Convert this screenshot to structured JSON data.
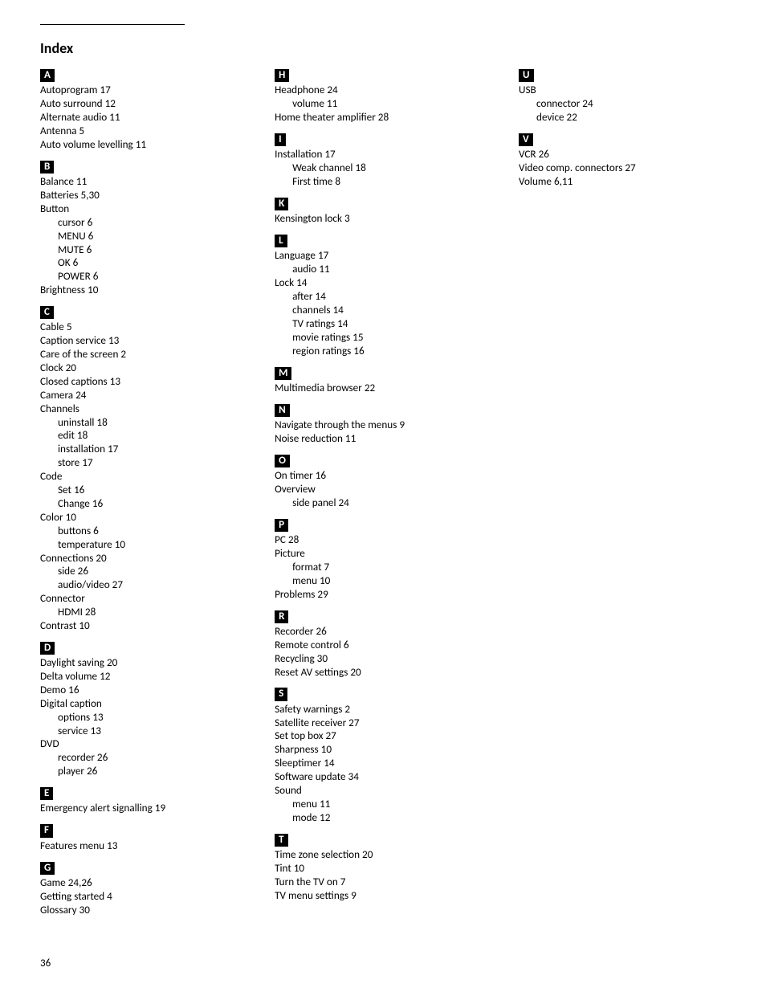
{
  "page": {
    "title": "Index",
    "page_number": "36"
  },
  "columns": [
    {
      "sections": [
        {
          "letter": "A",
          "entries": [
            {
              "t": "Autoprogram  17"
            },
            {
              "t": "Auto surround  12"
            },
            {
              "t": "Alternate audio  11"
            },
            {
              "t": "Antenna  5"
            },
            {
              "t": "Auto volume levelling  11"
            }
          ]
        },
        {
          "letter": "B",
          "entries": [
            {
              "t": "Balance  11"
            },
            {
              "t": "Batteries  5,30"
            },
            {
              "t": "Button"
            },
            {
              "t": "cursor  6",
              "sub": true
            },
            {
              "t": "MENU  6",
              "sub": true
            },
            {
              "t": "MUTE  6",
              "sub": true
            },
            {
              "t": "OK  6",
              "sub": true
            },
            {
              "t": "POWER  6",
              "sub": true
            },
            {
              "t": "Brightness  10"
            }
          ]
        },
        {
          "letter": "C",
          "entries": [
            {
              "t": "Cable  5"
            },
            {
              "t": "Caption service  13"
            },
            {
              "t": "Care of the screen  2"
            },
            {
              "t": "Clock  20"
            },
            {
              "t": "Closed captions  13"
            },
            {
              "t": "Camera  24"
            },
            {
              "t": "Channels"
            },
            {
              "t": "uninstall  18",
              "sub": true
            },
            {
              "t": "edit  18",
              "sub": true
            },
            {
              "t": "installation  17",
              "sub": true
            },
            {
              "t": "store  17",
              "sub": true
            },
            {
              "t": "Code"
            },
            {
              "t": "Set  16",
              "sub": true
            },
            {
              "t": "Change 16",
              "sub": true
            },
            {
              "t": "Color  10"
            },
            {
              "t": "buttons  6",
              "sub": true
            },
            {
              "t": "temperature  10",
              "sub": true
            },
            {
              "t": "Connections  20"
            },
            {
              "t": "side  26",
              "sub": true
            },
            {
              "t": "audio/video  27",
              "sub": true
            },
            {
              "t": "Connector"
            },
            {
              "t": "HDMI  28",
              "sub": true
            },
            {
              "t": "Contrast  10"
            }
          ]
        },
        {
          "letter": "D",
          "entries": [
            {
              "t": "Daylight saving  20"
            },
            {
              "t": "Delta volume  12"
            },
            {
              "t": "Demo  16"
            },
            {
              "t": "Digital caption"
            },
            {
              "t": "options  13",
              "sub": true
            },
            {
              "t": "service  13",
              "sub": true
            },
            {
              "t": "DVD"
            },
            {
              "t": "recorder  26",
              "sub": true
            },
            {
              "t": "player  26",
              "sub": true
            }
          ]
        },
        {
          "letter": "E",
          "entries": [
            {
              "t": "Emergency alert signalling  19"
            }
          ]
        },
        {
          "letter": "F",
          "entries": [
            {
              "t": "Features menu 13"
            }
          ]
        },
        {
          "letter": "G",
          "entries": [
            {
              "t": "Game  24,26"
            },
            {
              "t": "Getting started  4"
            },
            {
              "t": "Glossary  30"
            }
          ]
        }
      ]
    },
    {
      "sections": [
        {
          "letter": "H",
          "entries": [
            {
              "t": "Headphone  24"
            },
            {
              "t": "volume  11",
              "sub": true
            },
            {
              "t": "Home theater amplifier  28"
            }
          ]
        },
        {
          "letter": "I",
          "entries": [
            {
              "t": "Installation  17"
            },
            {
              "t": "Weak channel 18",
              "sub": true
            },
            {
              "t": "First time  8",
              "sub": true
            }
          ]
        },
        {
          "letter": "K",
          "entries": [
            {
              "t": "Kensington lock  3"
            }
          ]
        },
        {
          "letter": "L",
          "entries": [
            {
              "t": "Language  17"
            },
            {
              "t": "audio  11",
              "sub": true
            },
            {
              "t": "Lock   14"
            },
            {
              "t": "after  14",
              "sub": true
            },
            {
              "t": "channels  14",
              "sub": true
            },
            {
              "t": "TV ratings  14",
              "sub": true
            },
            {
              "t": "movie ratings  15",
              "sub": true
            },
            {
              "t": "region ratings  16",
              "sub": true
            }
          ]
        },
        {
          "letter": "M",
          "entries": [
            {
              "t": "Multimedia browser  22"
            }
          ]
        },
        {
          "letter": "N",
          "entries": [
            {
              "t": "Navigate through the menus  9"
            },
            {
              "t": "Noise reduction  11"
            }
          ]
        },
        {
          "letter": "O",
          "entries": [
            {
              "t": "On timer  16"
            },
            {
              "t": "Overview"
            },
            {
              "t": "side panel  24",
              "sub": true
            }
          ]
        },
        {
          "letter": "P",
          "entries": [
            {
              "t": "PC  28"
            },
            {
              "t": "Picture"
            },
            {
              "t": "format  7",
              "sub": true
            },
            {
              "t": "menu  10",
              "sub": true
            },
            {
              "t": "Problems  29"
            }
          ]
        },
        {
          "letter": "R",
          "entries": [
            {
              "t": "Recorder  26"
            },
            {
              "t": "Remote control  6"
            },
            {
              "t": "Recycling  30"
            },
            {
              "t": "Reset AV settings  20"
            }
          ]
        },
        {
          "letter": "S",
          "entries": [
            {
              "t": "Safety warnings  2"
            },
            {
              "t": "Satellite receiver  27"
            },
            {
              "t": "Set top box  27"
            },
            {
              "t": "Sharpness  10"
            },
            {
              "t": "Sleeptimer  14"
            },
            {
              "t": "Software update  34"
            },
            {
              "t": "Sound"
            },
            {
              "t": "menu  11",
              "sub": true
            },
            {
              "t": "mode  12",
              "sub": true
            }
          ]
        },
        {
          "letter": "T",
          "entries": [
            {
              "t": "Time zone selection  20"
            },
            {
              "t": "Tint  10"
            },
            {
              "t": "Turn the TV on  7"
            },
            {
              "t": "TV menu settings  9"
            }
          ]
        }
      ]
    },
    {
      "sections": [
        {
          "letter": "U",
          "entries": [
            {
              "t": "USB"
            },
            {
              "t": "connector  24",
              "sub": true
            },
            {
              "t": "device  22",
              "sub": true
            }
          ]
        },
        {
          "letter": "V",
          "entries": [
            {
              "t": "VCR  26"
            },
            {
              "t": "Video comp. connectors  27"
            },
            {
              "t": "Volume  6,11"
            }
          ]
        }
      ]
    }
  ]
}
